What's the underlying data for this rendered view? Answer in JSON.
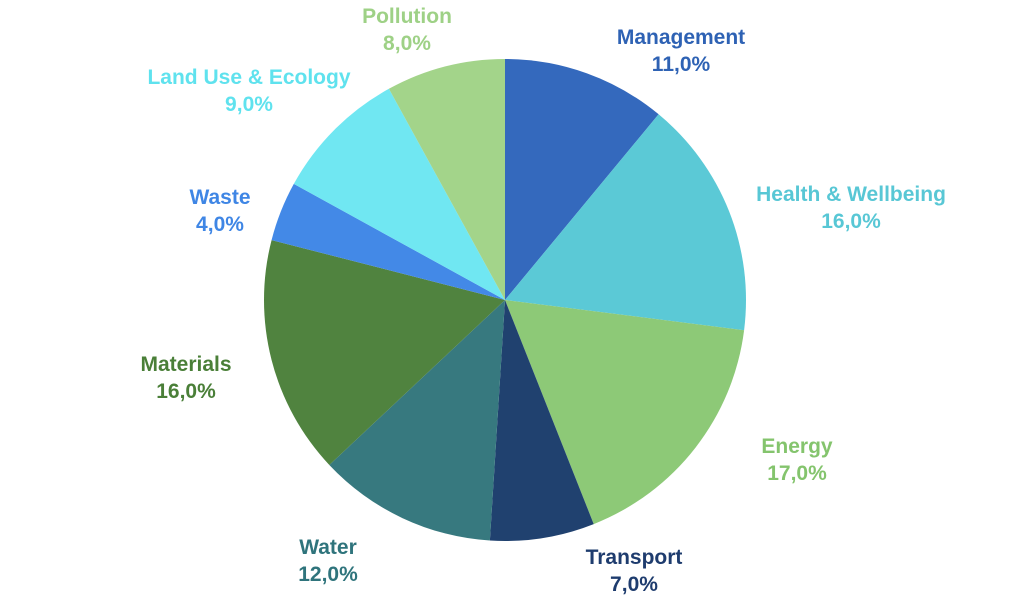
{
  "page": {
    "background_color": "#ffffff"
  },
  "chart_data": {
    "type": "pie",
    "title": "",
    "start_angle_deg": 0,
    "direction": "clockwise",
    "value_suffix": "%",
    "decimal_separator": ",",
    "legend_position": "outside-labels-around-pie",
    "label_format": "name above percent, two lines, colored to match slice",
    "slices": [
      {
        "label": "Management",
        "value": 11.0,
        "display_value": "11,0%",
        "color": "#3469BD",
        "label_color": "#2E62B4"
      },
      {
        "label": "Health & Wellbeing",
        "value": 16.0,
        "display_value": "16,0%",
        "color": "#5BC9D6",
        "label_color": "#58C7D5"
      },
      {
        "label": "Energy",
        "value": 17.0,
        "display_value": "17,0%",
        "color": "#8DC977",
        "label_color": "#84C46D"
      },
      {
        "label": "Transport",
        "value": 7.0,
        "display_value": "7,0%",
        "color": "#20416F",
        "label_color": "#1E3C6E"
      },
      {
        "label": "Water",
        "value": 12.0,
        "display_value": "12,0%",
        "color": "#37797F",
        "label_color": "#2F747C"
      },
      {
        "label": "Materials",
        "value": 16.0,
        "display_value": "16,0%",
        "color": "#50833F",
        "label_color": "#4A7F38"
      },
      {
        "label": "Waste",
        "value": 4.0,
        "display_value": "4,0%",
        "color": "#4389E7",
        "label_color": "#3F86E5"
      },
      {
        "label": "Land Use & Ecology",
        "value": 9.0,
        "display_value": "9,0%",
        "color": "#70E7F2",
        "label_color": "#5FE2EE"
      },
      {
        "label": "Pollution",
        "value": 8.0,
        "display_value": "8,0%",
        "color": "#A3D48A",
        "label_color": "#9ED186"
      }
    ]
  }
}
